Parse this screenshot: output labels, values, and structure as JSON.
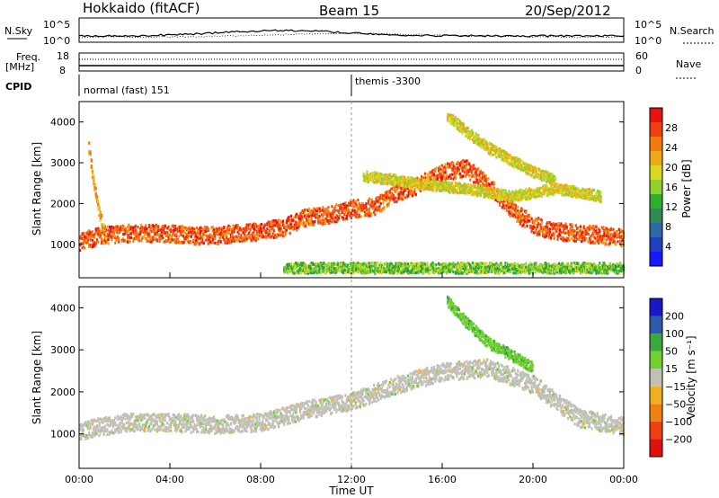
{
  "header": {
    "station": "Hokkaido (fitACF)",
    "beam": "Beam 15",
    "date": "20/Sep/2012"
  },
  "top_panels": {
    "nsky_label": "N.Sky",
    "nsearch_label": "N.Search",
    "noise_ticks_left": [
      "10^5",
      "10^0"
    ],
    "noise_ticks_right": [
      "10^5",
      "10^0"
    ],
    "freq_label": "Freq.",
    "freq_unit": "[MHz]",
    "freq_ticks": [
      "18",
      "8"
    ],
    "nave_label": "Nave",
    "nave_ticks": [
      "60",
      "0"
    ],
    "cpid_label": "CPID",
    "cpid_modes": [
      {
        "label": "normal (fast) 151",
        "start_hour": 0
      },
      {
        "label": "themis -3300",
        "start_hour": 12
      }
    ]
  },
  "chart_data": [
    {
      "type": "heatmap",
      "panel": "power",
      "ylabel": "Slant Range [km]",
      "ylim": [
        180,
        4500
      ],
      "yticks": [
        "1000",
        "2000",
        "3000",
        "4000"
      ],
      "xlim_hours": [
        0,
        24
      ],
      "colorbar": {
        "label": "Power [dB]",
        "ticks": [
          "4",
          "8",
          "12",
          "16",
          "20",
          "24",
          "28"
        ],
        "range": [
          0,
          30
        ],
        "colors": [
          "#1818ff",
          "#2040c0",
          "#2e6aa6",
          "#2f8a4f",
          "#2fae2f",
          "#8fd030",
          "#d8d820",
          "#f0a818",
          "#f47a10",
          "#f04010",
          "#e81010"
        ]
      },
      "echo_bands": [
        {
          "name": "main band",
          "x_hours": [
            0.0,
            1.0,
            2.0,
            3.0,
            4.0,
            5.0,
            6.0,
            7.0,
            8.0,
            9.0,
            10.0,
            11.0,
            12.0,
            13.0,
            14.0,
            15.0,
            16.0,
            17.0,
            18.0,
            19.0,
            20.0,
            21.0,
            22.0,
            23.0,
            24.0
          ],
          "range_km": [
            1100,
            1250,
            1300,
            1300,
            1300,
            1250,
            1250,
            1300,
            1350,
            1450,
            1700,
            1750,
            1900,
            1950,
            2300,
            2500,
            2800,
            2900,
            2500,
            1900,
            1500,
            1350,
            1300,
            1250,
            1200
          ],
          "power_db": 26
        },
        {
          "name": "upper band",
          "x_hours": [
            12.5,
            14.0,
            15.0,
            16.0,
            17.0,
            18.0,
            19.0,
            20.0,
            21.0,
            22.0,
            23.0
          ],
          "range_km": [
            2700,
            2600,
            2500,
            2450,
            2400,
            2300,
            2200,
            2300,
            2400,
            2300,
            2200
          ],
          "power_db": 18
        },
        {
          "name": "early arc",
          "x_hours": [
            0.4,
            0.6,
            0.8,
            1.0,
            1.2
          ],
          "range_km": [
            3400,
            2600,
            2000,
            1500,
            1100
          ],
          "power_db": 22
        },
        {
          "name": "oblique arc",
          "x_hours": [
            16.2,
            17.0,
            18.0,
            19.0,
            20.0,
            21.0
          ],
          "range_km": [
            4200,
            3800,
            3400,
            3100,
            2800,
            2600
          ],
          "power_db": 18
        },
        {
          "name": "ground scatter base",
          "x_hours": [
            9.0,
            12.0,
            16.0,
            20.0,
            24.0
          ],
          "range_km": [
            450,
            450,
            450,
            450,
            450
          ],
          "power_db": 14
        }
      ]
    },
    {
      "type": "heatmap",
      "panel": "velocity",
      "ylabel": "Slant Range [km]",
      "ylim": [
        180,
        4500
      ],
      "yticks": [
        "1000",
        "2000",
        "3000",
        "4000"
      ],
      "xlim_hours": [
        0,
        24
      ],
      "xticks": [
        "00:00",
        "04:00",
        "08:00",
        "12:00",
        "16:00",
        "20:00",
        "00:00"
      ],
      "xlabel": "Time UT",
      "colorbar": {
        "label": "Velocity [m s⁻¹]",
        "ticks": [
          "200",
          "100",
          "50",
          "15",
          "−15",
          "−50",
          "−100",
          "−200"
        ],
        "colors": [
          "#1818c8",
          "#2a5aa8",
          "#3aa83a",
          "#70d030",
          "#c0c0b8",
          "#f0b020",
          "#f08010",
          "#f04010",
          "#e01010"
        ]
      },
      "echo_bands": [
        {
          "name": "ground scatter",
          "x_hours": [
            0.0,
            2.0,
            4.0,
            6.0,
            8.0,
            10.0,
            12.0,
            14.0,
            16.0,
            18.0,
            20.0,
            22.0,
            24.0
          ],
          "range_km": [
            1100,
            1300,
            1300,
            1250,
            1300,
            1600,
            1800,
            2200,
            2500,
            2600,
            2200,
            1400,
            1200
          ],
          "velocity": 0
        },
        {
          "name": "arc",
          "x_hours": [
            16.2,
            17.0,
            18.0,
            19.0,
            20.0
          ],
          "range_km": [
            4200,
            3700,
            3200,
            2900,
            2600
          ],
          "velocity": 60
        }
      ]
    }
  ]
}
